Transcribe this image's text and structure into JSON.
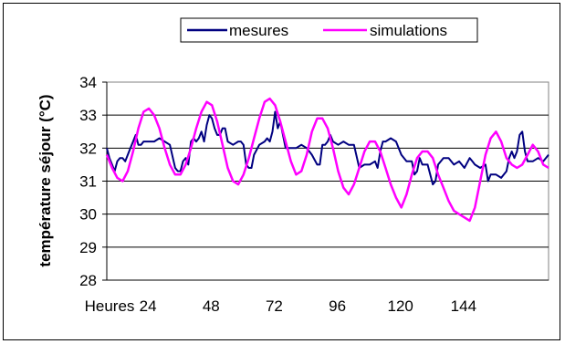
{
  "chart_data": {
    "type": "line",
    "title": "",
    "xlabel": "",
    "ylabel": "température séjour (°C)",
    "x_first_label": "Heures",
    "x_ticks": [
      24,
      48,
      72,
      96,
      120,
      144
    ],
    "xlim": [
      0,
      168
    ],
    "ylim": [
      28,
      34
    ],
    "y_ticks": [
      28,
      29,
      30,
      31,
      32,
      33,
      34
    ],
    "grid": "horizontal",
    "legend_position": "top",
    "series": [
      {
        "name": "mesures",
        "color": "#000080",
        "x": [
          0,
          1,
          2,
          3,
          4,
          5,
          6,
          7,
          8,
          9,
          10,
          11,
          12,
          13,
          14,
          15,
          16,
          18,
          20,
          22,
          24,
          26,
          27,
          28,
          29,
          30,
          31,
          32,
          33,
          34,
          35,
          36,
          37,
          38,
          39,
          40,
          41,
          42,
          43,
          44,
          45,
          46,
          48,
          50,
          51,
          52,
          53,
          54,
          55,
          56,
          58,
          60,
          61,
          62,
          63,
          64,
          65,
          66,
          67,
          68,
          70,
          72,
          74,
          76,
          78,
          80,
          81,
          82,
          83,
          84,
          85,
          86,
          88,
          90,
          92,
          94,
          96,
          98,
          100,
          102,
          103,
          104,
          105,
          106,
          108,
          110,
          112,
          114,
          115,
          116,
          117,
          118,
          119,
          120,
          122,
          124,
          125,
          126,
          128,
          130,
          132,
          134,
          136,
          138,
          139,
          140,
          142,
          144,
          145,
          146,
          147,
          148,
          150,
          152,
          153,
          154,
          155,
          156,
          157,
          158,
          159,
          160,
          162,
          164,
          166,
          168
        ],
        "y": [
          32.0,
          31.7,
          31.5,
          31.3,
          31.6,
          31.7,
          31.7,
          31.6,
          31.8,
          32.0,
          32.2,
          32.4,
          32.1,
          32.1,
          32.2,
          32.2,
          32.2,
          32.2,
          32.3,
          32.2,
          32.1,
          31.4,
          31.3,
          31.3,
          31.6,
          31.7,
          31.5,
          32.2,
          32.3,
          32.2,
          32.3,
          32.5,
          32.2,
          32.7,
          33.0,
          32.9,
          32.6,
          32.4,
          32.4,
          32.6,
          32.6,
          32.2,
          32.1,
          32.2,
          32.2,
          32.1,
          31.5,
          31.4,
          31.4,
          31.8,
          32.1,
          32.2,
          32.3,
          32.2,
          32.5,
          33.1,
          32.6,
          32.8,
          32.4,
          32.0,
          32.0,
          32.0,
          32.1,
          32.0,
          31.8,
          31.5,
          31.5,
          32.1,
          32.1,
          32.2,
          32.4,
          32.2,
          32.1,
          32.2,
          32.1,
          32.1,
          31.4,
          31.5,
          31.5,
          31.6,
          31.4,
          31.9,
          32.2,
          32.2,
          32.3,
          32.2,
          31.8,
          31.6,
          31.6,
          31.6,
          31.2,
          31.3,
          31.7,
          31.5,
          31.5,
          30.9,
          31.0,
          31.5,
          31.7,
          31.7,
          31.5,
          31.6,
          31.4,
          31.7,
          31.6,
          31.5,
          31.4,
          31.5,
          31.0,
          31.2,
          31.2,
          31.2,
          31.1,
          31.3,
          31.7,
          31.9,
          31.7,
          31.9,
          32.4,
          32.5,
          31.9,
          31.6,
          31.6,
          31.7,
          31.6,
          31.8
        ]
      },
      {
        "name": "simulations",
        "color": "#ff00ff",
        "x": [
          0,
          2,
          4,
          6,
          8,
          10,
          12,
          14,
          16,
          18,
          20,
          22,
          24,
          26,
          28,
          30,
          32,
          34,
          36,
          38,
          40,
          42,
          44,
          46,
          48,
          50,
          52,
          54,
          56,
          58,
          60,
          62,
          64,
          66,
          68,
          70,
          72,
          74,
          76,
          78,
          80,
          82,
          84,
          86,
          88,
          90,
          92,
          94,
          96,
          98,
          100,
          102,
          104,
          106,
          108,
          110,
          112,
          114,
          116,
          118,
          120,
          122,
          124,
          126,
          128,
          130,
          132,
          134,
          136,
          138,
          140,
          142,
          144,
          146,
          148,
          150,
          152,
          154,
          156,
          158,
          160,
          162,
          164,
          166,
          168
        ],
        "y": [
          31.8,
          31.4,
          31.1,
          31.0,
          31.3,
          31.9,
          32.6,
          33.1,
          33.2,
          33.0,
          32.6,
          32.0,
          31.5,
          31.2,
          31.2,
          31.5,
          32.0,
          32.6,
          33.1,
          33.4,
          33.3,
          32.8,
          32.1,
          31.4,
          31.0,
          30.9,
          31.2,
          31.7,
          32.3,
          32.9,
          33.4,
          33.5,
          33.3,
          32.8,
          32.2,
          31.6,
          31.2,
          31.3,
          31.8,
          32.5,
          32.9,
          32.9,
          32.6,
          32.0,
          31.3,
          30.8,
          30.6,
          30.9,
          31.4,
          31.9,
          32.2,
          32.2,
          31.9,
          31.4,
          30.9,
          30.5,
          30.2,
          30.6,
          31.2,
          31.7,
          31.9,
          31.9,
          31.7,
          31.2,
          30.8,
          30.4,
          30.1,
          30.0,
          29.9,
          29.8,
          30.2,
          31.0,
          31.8,
          32.3,
          32.5,
          32.2,
          31.7,
          31.5,
          31.4,
          31.5,
          31.8,
          32.1,
          31.9,
          31.5,
          31.4
        ]
      }
    ]
  }
}
